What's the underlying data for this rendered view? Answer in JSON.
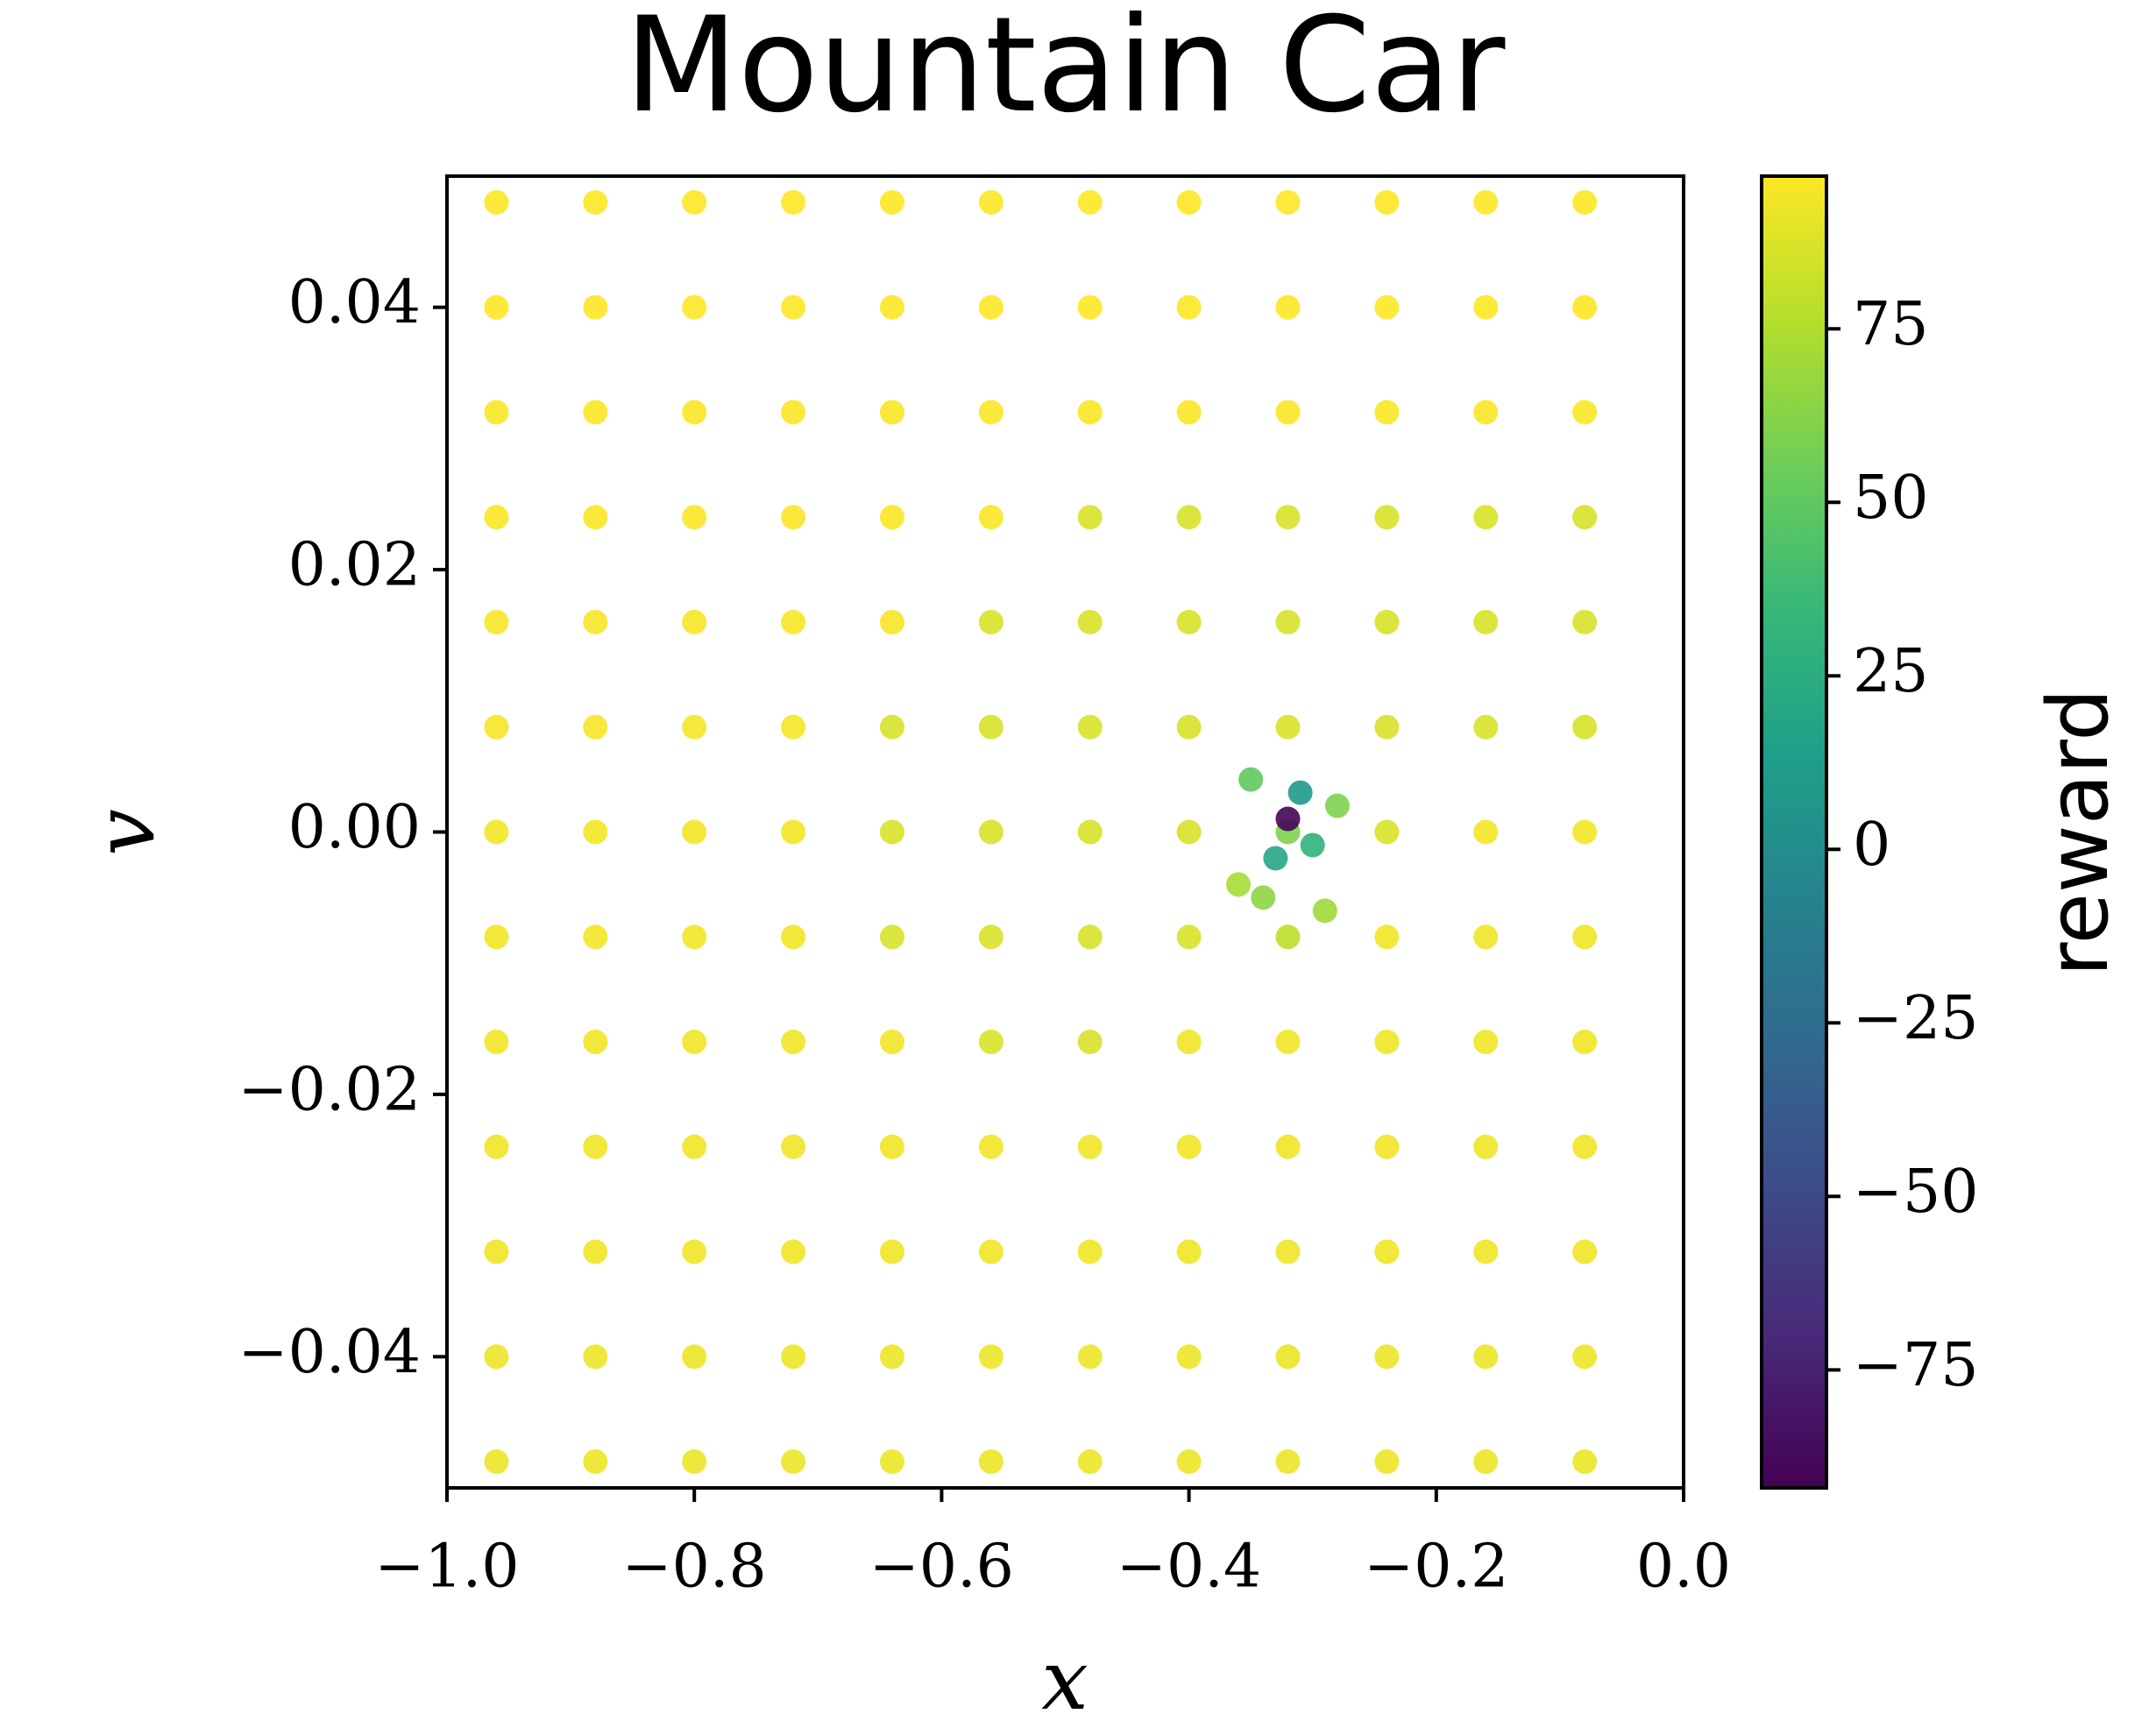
{
  "chart_data": {
    "type": "scatter",
    "title": "Mountain Car",
    "x_label": "x",
    "y_label": "v",
    "colorbar_label": "reward",
    "colormap": "viridis",
    "xlim": [
      -1.0,
      0.0
    ],
    "xticks": [
      {
        "value": -1.0,
        "label": "−1.0"
      },
      {
        "value": -0.8,
        "label": "−0.8"
      },
      {
        "value": -0.6,
        "label": "−0.6"
      },
      {
        "value": -0.4,
        "label": "−0.4"
      },
      {
        "value": -0.2,
        "label": "−0.2"
      },
      {
        "value": 0.0,
        "label": "0.0"
      }
    ],
    "ylim": [
      -0.05,
      0.05
    ],
    "yticks": [
      {
        "value": -0.04,
        "label": "−0.04"
      },
      {
        "value": -0.02,
        "label": "−0.02"
      },
      {
        "value": 0.0,
        "label": "0.00"
      },
      0.02,
      0.04
    ],
    "clim": [
      -92,
      97
    ],
    "cticks": [
      {
        "value": -75,
        "label": "−75"
      },
      {
        "value": -50,
        "label": "−50"
      },
      {
        "value": -25,
        "label": "−25"
      },
      0,
      25,
      50,
      75
    ],
    "x": [
      -0.96,
      -0.88,
      -0.8,
      -0.72,
      -0.64,
      -0.56,
      -0.48,
      -0.4,
      -0.32,
      -0.24,
      -0.16,
      -0.08,
      -0.96,
      -0.88,
      -0.8,
      -0.72,
      -0.64,
      -0.56,
      -0.48,
      -0.4,
      -0.32,
      -0.24,
      -0.16,
      -0.08,
      -0.96,
      -0.88,
      -0.8,
      -0.72,
      -0.64,
      -0.56,
      -0.48,
      -0.4,
      -0.32,
      -0.24,
      -0.16,
      -0.08,
      -0.96,
      -0.88,
      -0.8,
      -0.72,
      -0.64,
      -0.56,
      -0.48,
      -0.4,
      -0.32,
      -0.24,
      -0.16,
      -0.08,
      -0.96,
      -0.88,
      -0.8,
      -0.72,
      -0.64,
      -0.56,
      -0.48,
      -0.4,
      -0.32,
      -0.24,
      -0.16,
      -0.08,
      -0.96,
      -0.88,
      -0.8,
      -0.72,
      -0.64,
      -0.56,
      -0.48,
      -0.4,
      -0.32,
      -0.24,
      -0.16,
      -0.08,
      -0.96,
      -0.88,
      -0.8,
      -0.72,
      -0.64,
      -0.56,
      -0.48,
      -0.4,
      -0.32,
      -0.24,
      -0.16,
      -0.08,
      -0.96,
      -0.88,
      -0.8,
      -0.72,
      -0.64,
      -0.56,
      -0.48,
      -0.4,
      -0.32,
      -0.24,
      -0.16,
      -0.08,
      -0.96,
      -0.88,
      -0.8,
      -0.72,
      -0.64,
      -0.56,
      -0.48,
      -0.4,
      -0.32,
      -0.24,
      -0.16,
      -0.08,
      -0.96,
      -0.88,
      -0.8,
      -0.72,
      -0.64,
      -0.56,
      -0.48,
      -0.4,
      -0.32,
      -0.24,
      -0.16,
      -0.08,
      -0.96,
      -0.88,
      -0.8,
      -0.72,
      -0.64,
      -0.56,
      -0.48,
      -0.4,
      -0.32,
      -0.24,
      -0.16,
      -0.08,
      -0.96,
      -0.88,
      -0.8,
      -0.72,
      -0.64,
      -0.56,
      -0.48,
      -0.4,
      -0.32,
      -0.24,
      -0.16,
      -0.08,
      -0.96,
      -0.88,
      -0.8,
      -0.72,
      -0.64,
      -0.56,
      -0.48,
      -0.4,
      -0.32,
      -0.24,
      -0.16,
      -0.08,
      -0.32,
      -0.31,
      -0.33,
      -0.3,
      -0.35,
      -0.28,
      -0.34,
      -0.29,
      -0.36
    ],
    "values": [
      0.048,
      0.048,
      0.048,
      0.048,
      0.048,
      0.048,
      0.048,
      0.048,
      0.048,
      0.048,
      0.048,
      0.048,
      0.04,
      0.04,
      0.04,
      0.04,
      0.04,
      0.04,
      0.04,
      0.04,
      0.04,
      0.04,
      0.04,
      0.04,
      0.032,
      0.032,
      0.032,
      0.032,
      0.032,
      0.032,
      0.032,
      0.032,
      0.032,
      0.032,
      0.032,
      0.032,
      0.024,
      0.024,
      0.024,
      0.024,
      0.024,
      0.024,
      0.024,
      0.024,
      0.024,
      0.024,
      0.024,
      0.024,
      0.016,
      0.016,
      0.016,
      0.016,
      0.016,
      0.016,
      0.016,
      0.016,
      0.016,
      0.016,
      0.016,
      0.016,
      0.008,
      0.008,
      0.008,
      0.008,
      0.008,
      0.008,
      0.008,
      0.008,
      0.008,
      0.008,
      0.008,
      0.008,
      0,
      0,
      0,
      0,
      0,
      0,
      0,
      0,
      0,
      0,
      0,
      0,
      -0.008,
      -0.008,
      -0.008,
      -0.008,
      -0.008,
      -0.008,
      -0.008,
      -0.008,
      -0.008,
      -0.008,
      -0.008,
      -0.008,
      -0.016,
      -0.016,
      -0.016,
      -0.016,
      -0.016,
      -0.016,
      -0.016,
      -0.016,
      -0.016,
      -0.016,
      -0.016,
      -0.016,
      -0.024,
      -0.024,
      -0.024,
      -0.024,
      -0.024,
      -0.024,
      -0.024,
      -0.024,
      -0.024,
      -0.024,
      -0.024,
      -0.024,
      -0.032,
      -0.032,
      -0.032,
      -0.032,
      -0.032,
      -0.032,
      -0.032,
      -0.032,
      -0.032,
      -0.032,
      -0.032,
      -0.032,
      -0.04,
      -0.04,
      -0.04,
      -0.04,
      -0.04,
      -0.04,
      -0.04,
      -0.04,
      -0.04,
      -0.04,
      -0.04,
      -0.04,
      -0.048,
      -0.048,
      -0.048,
      -0.048,
      -0.048,
      -0.048,
      -0.048,
      -0.048,
      -0.048,
      -0.048,
      -0.048,
      -0.048,
      0.001,
      0.003,
      -0.002,
      -0.001,
      0.004,
      0.002,
      -0.005,
      -0.006,
      -0.004
    ],
    "color_values": [
      97,
      97,
      97,
      97,
      97,
      97,
      97,
      97,
      97,
      97,
      97,
      97,
      97,
      97,
      97,
      97,
      97,
      97,
      97,
      97,
      97,
      97,
      97,
      97,
      96,
      96,
      96,
      96,
      96,
      96,
      96,
      96,
      96,
      96,
      96,
      96,
      96,
      96,
      96,
      96,
      96,
      96,
      86,
      86,
      86,
      86,
      86,
      86,
      95,
      95,
      95,
      95,
      95,
      86,
      86,
      86,
      86,
      86,
      86,
      86,
      95,
      95,
      95,
      95,
      86,
      86,
      86,
      86,
      86,
      86,
      86,
      86,
      94,
      94,
      94,
      94,
      86,
      86,
      86,
      86,
      60,
      86,
      94,
      94,
      94,
      94,
      94,
      94,
      86,
      86,
      86,
      86,
      78,
      93,
      93,
      93,
      93,
      93,
      93,
      93,
      93,
      86,
      86,
      93,
      93,
      93,
      93,
      93,
      93,
      93,
      93,
      93,
      93,
      93,
      93,
      93,
      93,
      93,
      93,
      93,
      93,
      93,
      93,
      93,
      93,
      93,
      93,
      93,
      93,
      93,
      93,
      93,
      92,
      92,
      92,
      92,
      92,
      92,
      92,
      92,
      92,
      92,
      92,
      92,
      92,
      92,
      92,
      92,
      92,
      92,
      92,
      92,
      92,
      92,
      92,
      92,
      -90,
      10,
      20,
      30,
      50,
      60,
      65,
      70,
      72
    ]
  }
}
